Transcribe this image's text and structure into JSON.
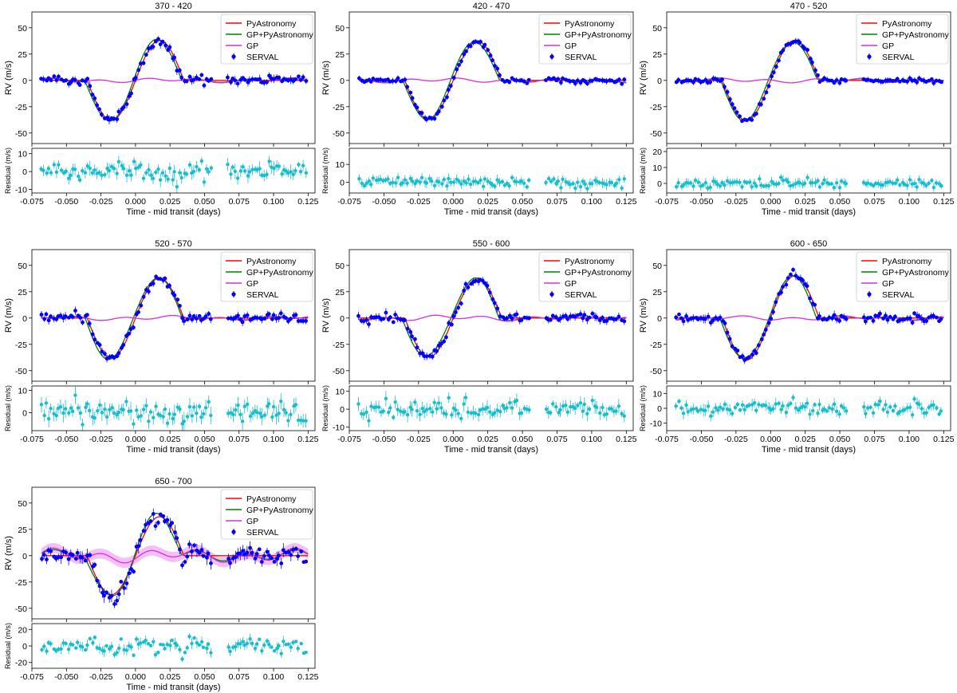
{
  "labels": {
    "rv_ylabel": "RV (m/s)",
    "res_ylabel": "Residual (m/s)",
    "xlabel": "Time - mid transit (days)"
  },
  "colors": {
    "pyastronomy": "#ff0000",
    "gp_pyastronomy": "#008000",
    "gp": "#d62fe0",
    "serval": "#0000ff",
    "residual": "#17becf"
  },
  "legend": [
    "PyAstronomy",
    "GP+PyAstronomy",
    "GP",
    "SERVAL"
  ],
  "x_ticks": [
    "-0.075",
    "-0.050",
    "-0.025",
    "0.000",
    "0.025",
    "0.050",
    "0.075",
    "0.100",
    "0.125"
  ],
  "chart_data": [
    {
      "type": "line",
      "title": "370 - 420",
      "xlabel": "Time - mid transit (days)",
      "ylabel": "RV (m/s)",
      "xlim": [
        -0.075,
        0.13
      ],
      "ylim": [
        -60,
        65
      ],
      "yticks": [
        -50,
        -25,
        0,
        25,
        50
      ],
      "res_ylim": [
        -12,
        13
      ],
      "res_yticks": [
        -10,
        0,
        10
      ],
      "amplitude": 38,
      "gp_scale": 2,
      "res_scale": 3.5,
      "legend": "top-right"
    },
    {
      "type": "line",
      "title": "420 - 470",
      "xlabel": "Time - mid transit (days)",
      "ylabel": "RV (m/s)",
      "xlim": [
        -0.075,
        0.13
      ],
      "ylim": [
        -60,
        65
      ],
      "yticks": [
        -50,
        -25,
        0,
        25,
        50
      ],
      "res_ylim": [
        -6,
        19
      ],
      "res_yticks": [
        0,
        10
      ],
      "amplitude": 37,
      "gp_scale": 2,
      "res_scale": 2,
      "legend": "top-right"
    },
    {
      "type": "line",
      "title": "470 - 520",
      "xlabel": "Time - mid transit (days)",
      "ylabel": "RV (m/s)",
      "xlim": [
        -0.075,
        0.13
      ],
      "ylim": [
        -60,
        65
      ],
      "yticks": [
        -50,
        -25,
        0,
        25,
        50
      ],
      "res_ylim": [
        -6,
        22
      ],
      "res_yticks": [
        0,
        10,
        20
      ],
      "amplitude": 38,
      "gp_scale": 2,
      "res_scale": 2,
      "legend": "top-right"
    },
    {
      "type": "line",
      "title": "520 - 570",
      "xlabel": "Time - mid transit (days)",
      "ylabel": "RV (m/s)",
      "xlim": [
        -0.075,
        0.13
      ],
      "ylim": [
        -60,
        65
      ],
      "yticks": [
        -50,
        -25,
        0,
        25,
        50
      ],
      "res_ylim": [
        -8,
        12
      ],
      "res_yticks": [
        0,
        10
      ],
      "amplitude": 38,
      "gp_scale": 2,
      "res_scale": 3.5,
      "legend": "top-right"
    },
    {
      "type": "line",
      "title": "550 - 600",
      "xlabel": "Time - mid transit (days)",
      "ylabel": "RV (m/s)",
      "xlim": [
        -0.075,
        0.13
      ],
      "ylim": [
        -60,
        65
      ],
      "yticks": [
        -50,
        -25,
        0,
        25,
        50
      ],
      "res_ylim": [
        -12,
        13
      ],
      "res_yticks": [
        -10,
        0,
        10
      ],
      "amplitude": 37,
      "gp_scale": 2.5,
      "res_scale": 3.5,
      "legend": "top-right"
    },
    {
      "type": "line",
      "title": "600 - 650",
      "xlabel": "Time - mid transit (days)",
      "ylabel": "RV (m/s)",
      "xlim": [
        -0.075,
        0.13
      ],
      "ylim": [
        -60,
        65
      ],
      "yticks": [
        -50,
        -25,
        0,
        25,
        50
      ],
      "res_ylim": [
        -15,
        15
      ],
      "res_yticks": [
        -10,
        0,
        10
      ],
      "amplitude": 40,
      "gp_scale": 2,
      "res_scale": 3.5,
      "legend": "top-right"
    },
    {
      "type": "line",
      "title": "650 - 700",
      "xlabel": "Time - mid transit (days)",
      "ylabel": "RV (m/s)",
      "xlim": [
        -0.075,
        0.13
      ],
      "ylim": [
        -60,
        65
      ],
      "yticks": [
        -50,
        -25,
        0,
        25,
        50
      ],
      "res_ylim": [
        -27,
        27
      ],
      "res_yticks": [
        -20,
        0,
        20
      ],
      "amplitude": 37,
      "gp_scale": 6,
      "res_scale": 7,
      "legend": "top-right"
    }
  ]
}
